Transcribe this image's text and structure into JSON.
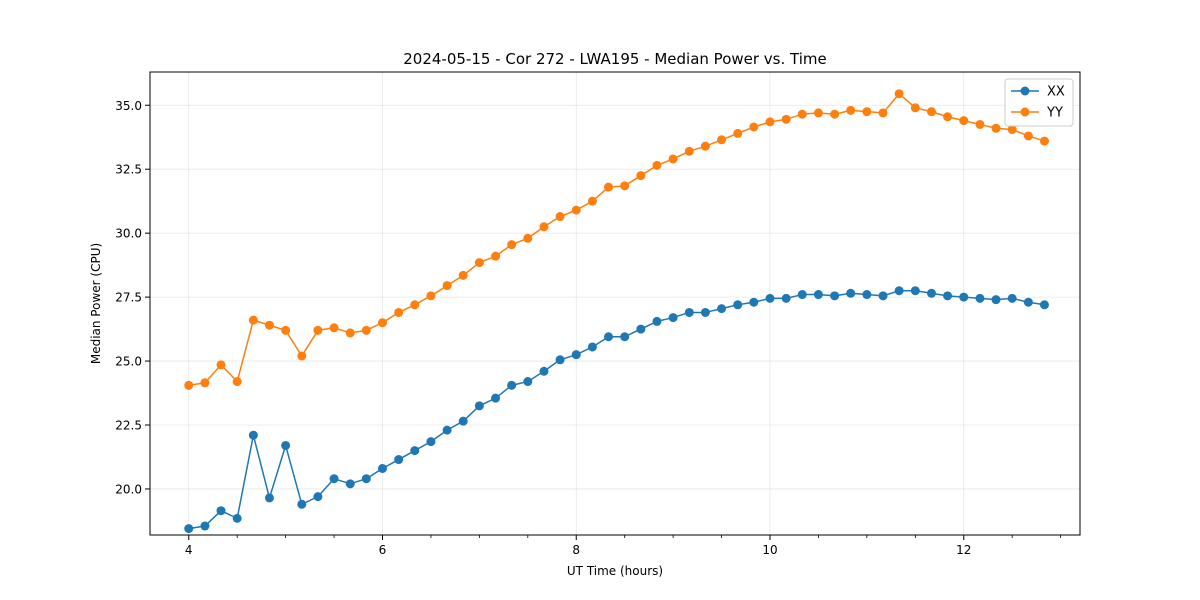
{
  "chart_data": {
    "type": "line",
    "title": "2024-05-15 - Cor 272 - LWA195 - Median Power vs. Time",
    "xlabel": "UT Time (hours)",
    "ylabel": "Median Power (CPU)",
    "xlim": [
      3.6,
      13.2
    ],
    "ylim": [
      18.2,
      36.3
    ],
    "xticks": [
      4,
      6,
      8,
      10,
      12
    ],
    "xtick_labels": [
      "4",
      "6",
      "8",
      "10",
      "12"
    ],
    "yticks": [
      20.0,
      22.5,
      25.0,
      27.5,
      30.0,
      32.5,
      35.0
    ],
    "ytick_labels": [
      "20.0",
      "22.5",
      "25.0",
      "27.5",
      "30.0",
      "32.5",
      "35.0"
    ],
    "grid": true,
    "legend_position": "top-right",
    "x": [
      4.0,
      4.167,
      4.333,
      4.5,
      4.667,
      4.833,
      5.0,
      5.167,
      5.333,
      5.5,
      5.667,
      5.833,
      6.0,
      6.167,
      6.333,
      6.5,
      6.667,
      6.833,
      7.0,
      7.167,
      7.333,
      7.5,
      7.667,
      7.833,
      8.0,
      8.167,
      8.333,
      8.5,
      8.667,
      8.833,
      9.0,
      9.167,
      9.333,
      9.5,
      9.667,
      9.833,
      10.0,
      10.167,
      10.333,
      10.5,
      10.667,
      10.833,
      11.0,
      11.167,
      11.333,
      11.5,
      11.667,
      11.833,
      12.0,
      12.167,
      12.333,
      12.5,
      12.667,
      12.833
    ],
    "series": [
      {
        "name": "XX",
        "color": "#1f77b4",
        "values": [
          18.45,
          18.55,
          19.15,
          18.85,
          22.1,
          19.65,
          21.7,
          19.4,
          19.7,
          20.4,
          20.2,
          20.4,
          20.8,
          21.15,
          21.5,
          21.85,
          22.3,
          22.65,
          23.25,
          23.55,
          24.05,
          24.2,
          24.6,
          25.05,
          25.25,
          25.55,
          25.95,
          25.95,
          26.25,
          26.55,
          26.7,
          26.9,
          26.9,
          27.05,
          27.2,
          27.3,
          27.45,
          27.45,
          27.6,
          27.6,
          27.55,
          27.65,
          27.6,
          27.55,
          27.75,
          27.75,
          27.65,
          27.55,
          27.5,
          27.45,
          27.4,
          27.45,
          27.3,
          27.2
        ]
      },
      {
        "name": "YY",
        "color": "#ff7f0e",
        "values": [
          24.05,
          24.15,
          24.85,
          24.2,
          26.6,
          26.4,
          26.2,
          25.2,
          26.2,
          26.3,
          26.1,
          26.2,
          26.5,
          26.9,
          27.2,
          27.55,
          27.95,
          28.35,
          28.85,
          29.1,
          29.55,
          29.8,
          30.25,
          30.65,
          30.9,
          31.25,
          31.8,
          31.85,
          32.25,
          32.65,
          32.9,
          33.2,
          33.4,
          33.65,
          33.9,
          34.15,
          34.35,
          34.45,
          34.65,
          34.7,
          34.65,
          34.8,
          34.75,
          34.7,
          35.45,
          34.9,
          34.75,
          34.55,
          34.4,
          34.25,
          34.1,
          34.05,
          33.8,
          33.6
        ]
      }
    ]
  }
}
